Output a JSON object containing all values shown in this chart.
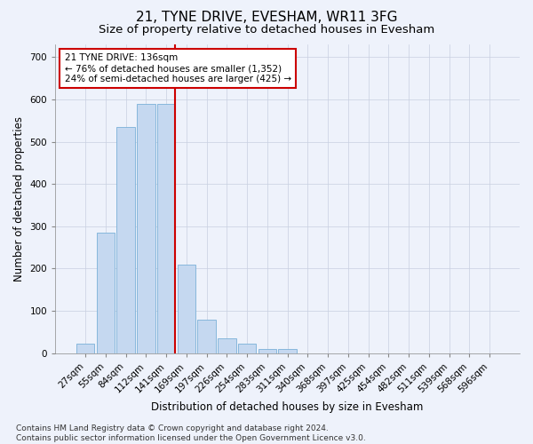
{
  "title": "21, TYNE DRIVE, EVESHAM, WR11 3FG",
  "subtitle": "Size of property relative to detached houses in Evesham",
  "xlabel": "Distribution of detached houses by size in Evesham",
  "ylabel": "Number of detached properties",
  "categories": [
    "27sqm",
    "55sqm",
    "84sqm",
    "112sqm",
    "141sqm",
    "169sqm",
    "197sqm",
    "226sqm",
    "254sqm",
    "283sqm",
    "311sqm",
    "340sqm",
    "368sqm",
    "397sqm",
    "425sqm",
    "454sqm",
    "482sqm",
    "511sqm",
    "539sqm",
    "568sqm",
    "596sqm"
  ],
  "values": [
    22,
    285,
    535,
    590,
    590,
    210,
    80,
    35,
    22,
    10,
    10,
    0,
    0,
    0,
    0,
    0,
    0,
    0,
    0,
    0,
    0
  ],
  "bar_color": "#c5d8f0",
  "bar_edgecolor": "#7ab0d8",
  "vline_color": "#cc0000",
  "vline_position": 4.425,
  "annotation_text": "21 TYNE DRIVE: 136sqm\n← 76% of detached houses are smaller (1,352)\n24% of semi-detached houses are larger (425) →",
  "annotation_box_facecolor": "#ffffff",
  "annotation_box_edgecolor": "#cc0000",
  "ylim": [
    0,
    730
  ],
  "yticks": [
    0,
    100,
    200,
    300,
    400,
    500,
    600,
    700
  ],
  "footer_text": "Contains HM Land Registry data © Crown copyright and database right 2024.\nContains public sector information licensed under the Open Government Licence v3.0.",
  "bg_color": "#eef2fb",
  "plot_bg_color": "#eef2fb",
  "grid_color": "#c8cfe0",
  "title_fontsize": 11,
  "subtitle_fontsize": 9.5,
  "axis_label_fontsize": 8.5,
  "tick_fontsize": 7.5,
  "annotation_fontsize": 7.5,
  "footer_fontsize": 6.5
}
